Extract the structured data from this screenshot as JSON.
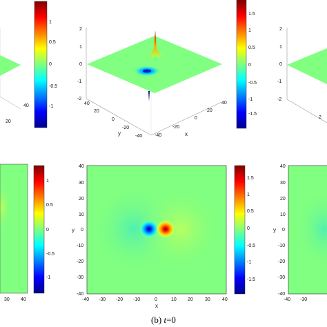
{
  "caption": {
    "prefix": "(b) ",
    "var": "t",
    "suffix": "=0"
  },
  "colormap": "jet",
  "panels": {
    "left_3d": {
      "axis": {
        "x_ticks": [
          "40"
        ],
        "y_ticks": [
          "20"
        ],
        "z_ticks": []
      },
      "colorbar_ticks": [
        "1",
        "0.5",
        "0",
        "-0.5",
        "-1"
      ]
    },
    "center_3d": {
      "axis": {
        "z_ticks": [
          "2",
          "1",
          "0",
          "-1",
          "-2"
        ],
        "y_ticks": [
          "40",
          "20",
          "0",
          "-20",
          "-40"
        ],
        "x_ticks": [
          "-40",
          "-20",
          "0",
          "20",
          "40"
        ],
        "y_label": "y",
        "x_label": "x"
      },
      "colorbar_ticks": [
        "1.5",
        "1",
        "0.5",
        "0",
        "-0.5",
        "-1",
        "-1.5"
      ]
    },
    "right_3d": {
      "axis": {
        "z_ticks": [
          "2",
          "1",
          "0",
          "-1",
          "-2"
        ],
        "y_ticks": [
          "2"
        ]
      }
    },
    "left_2d": {
      "axis": {
        "x_ticks": [
          "30",
          "40"
        ]
      },
      "colorbar_ticks": [
        "1",
        "0.5",
        "0",
        "-0.5",
        "-1"
      ]
    },
    "center_2d": {
      "axis": {
        "x_ticks": [
          "-40",
          "-30",
          "-20",
          "-10",
          "0",
          "10",
          "20",
          "30",
          "40"
        ],
        "y_ticks": [
          "40",
          "30",
          "20",
          "10",
          "0",
          "-10",
          "-20",
          "-30",
          "-40"
        ],
        "x_label": "x",
        "y_label": "y"
      },
      "colorbar_ticks": [
        "1.5",
        "1",
        "0.5",
        "0",
        "-0.5",
        "-1",
        "-1.5"
      ]
    },
    "right_2d": {
      "axis": {
        "x_ticks": [
          "-40",
          "-30"
        ],
        "y_ticks": [
          "40",
          "30",
          "20",
          "10",
          "0",
          "-10",
          "-20",
          "-30",
          "-40"
        ],
        "y_label": "y"
      }
    }
  }
}
